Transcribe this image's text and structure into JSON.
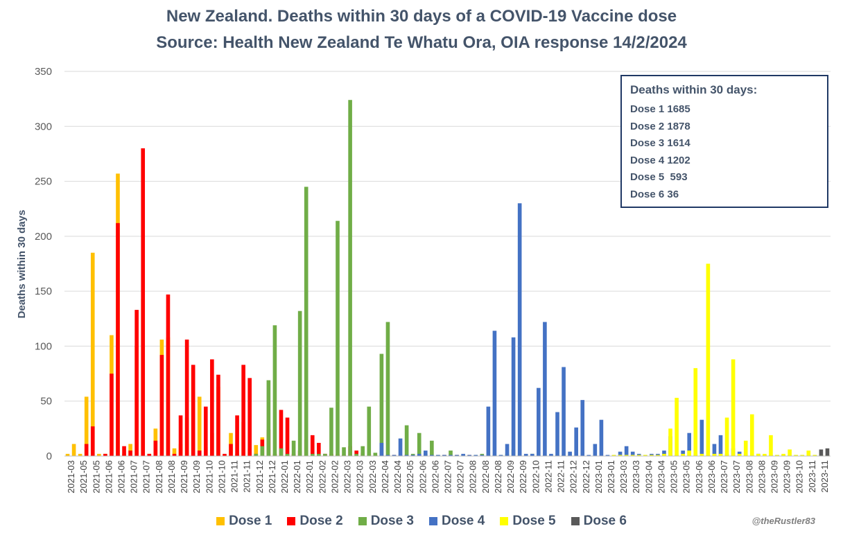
{
  "title_line1": "New Zealand. Deaths within 30 days of a COVID-19 Vaccine dose",
  "title_line2": "Source: Health New Zealand Te Whatu Ora, OIA response 14/2/2024",
  "infobox": {
    "heading": "Deaths within 30 days:",
    "rows": [
      "Dose 1 1685",
      "Dose 2 1878",
      "Dose 3 1614",
      "Dose 4 1202",
      "Dose 5  593",
      "Dose 6 36"
    ]
  },
  "credit": "@theRustler83",
  "chart_data": {
    "type": "bar",
    "ylabel": "Deaths within 30 days",
    "ylim": [
      0,
      350
    ],
    "yticks": [
      0,
      50,
      100,
      150,
      200,
      250,
      300,
      350
    ],
    "grid": true,
    "legend_position": "bottom",
    "x_tick_labels": [
      "2021-03",
      "2021-05",
      "2021-05",
      "2021-06",
      "2021-06",
      "2021-07",
      "2021-07",
      "2021-08",
      "2021-08",
      "2021-09",
      "2021-09",
      "2021-10",
      "2021-10",
      "2021-11",
      "2021-11",
      "2021-12",
      "2021-12",
      "2022-01",
      "2022-01",
      "2022-01",
      "2022-02",
      "2022-02",
      "2022-03",
      "2022-03",
      "2022-03",
      "2022-04",
      "2022-04",
      "2022-05",
      "2022-06",
      "2022-06",
      "2022-07",
      "2022-07",
      "2022-08",
      "2022-08",
      "2022-08",
      "2022-09",
      "2022-09",
      "2022-10",
      "2022-11",
      "2022-11",
      "2022-12",
      "2022-12",
      "2023-01",
      "2023-01",
      "2023-03",
      "2023-03",
      "2023-04",
      "2023-04",
      "2023-05",
      "2023-05",
      "2023-06",
      "2023-06",
      "2023-07",
      "2023-07",
      "2023-08",
      "2023-08",
      "2023-09",
      "2023-09",
      "2023-10",
      "2023-11",
      "2023-11"
    ],
    "series": [
      {
        "name": "Dose 1",
        "color": "#ffc000",
        "values": [
          2,
          11,
          2,
          54,
          185,
          2,
          2,
          110,
          257,
          2,
          11,
          100,
          143,
          2,
          25,
          106,
          108,
          7,
          11,
          35,
          80,
          54,
          8,
          21,
          63,
          1,
          21,
          2,
          31,
          7,
          10,
          17,
          2,
          2,
          1,
          1,
          1,
          1,
          1,
          2,
          1,
          1,
          1,
          2,
          1,
          1,
          0,
          1,
          0,
          1,
          0,
          1,
          0,
          0,
          0,
          0,
          0,
          0,
          0,
          0,
          0,
          0,
          0,
          0,
          0,
          0,
          0,
          0,
          0,
          0,
          0,
          0,
          0,
          0,
          0,
          0,
          0,
          0,
          0,
          0,
          0,
          0,
          0,
          0,
          0,
          0,
          0,
          0,
          0,
          0,
          0,
          0,
          0,
          0,
          0,
          0,
          0,
          0,
          0,
          0,
          0,
          0,
          0,
          0,
          0,
          0,
          0,
          0,
          0,
          0,
          0,
          0,
          0,
          0,
          0,
          0,
          0,
          0,
          0,
          0,
          0,
          0
        ]
      },
      {
        "name": "Dose 2",
        "color": "#ff0000",
        "values": [
          0,
          0,
          0,
          11,
          27,
          0,
          2,
          75,
          212,
          9,
          5,
          133,
          280,
          2,
          14,
          92,
          147,
          2,
          37,
          106,
          83,
          5,
          45,
          88,
          74,
          2,
          11,
          37,
          83,
          71,
          2,
          15,
          24,
          2,
          42,
          35,
          2,
          5,
          15,
          19,
          12,
          2,
          2,
          1,
          1,
          9,
          5,
          3,
          2,
          1,
          1,
          1,
          1,
          1,
          1,
          1,
          1,
          0,
          0,
          0,
          1,
          0,
          1,
          0,
          1,
          0,
          0,
          0,
          0,
          0,
          0,
          0,
          0,
          0,
          0,
          0,
          0,
          0,
          0,
          0,
          0,
          0,
          0,
          0,
          0,
          0,
          0,
          0,
          0,
          0,
          0,
          0,
          0,
          0,
          0,
          0,
          0,
          0,
          0,
          0,
          0,
          0,
          0,
          0,
          0,
          0,
          0,
          0,
          0,
          0,
          0,
          0,
          0,
          0,
          0,
          0,
          0,
          0,
          0,
          0,
          0,
          0
        ]
      },
      {
        "name": "Dose 3",
        "color": "#70ad47",
        "values": [
          0,
          0,
          0,
          0,
          0,
          0,
          0,
          0,
          0,
          0,
          0,
          0,
          0,
          0,
          0,
          0,
          0,
          0,
          0,
          0,
          0,
          0,
          0,
          0,
          0,
          0,
          0,
          0,
          0,
          0,
          2,
          9,
          69,
          119,
          7,
          2,
          14,
          132,
          245,
          2,
          2,
          2,
          44,
          214,
          8,
          324,
          2,
          9,
          45,
          3,
          93,
          122,
          1,
          1,
          28,
          2,
          21,
          2,
          14,
          1,
          1,
          5,
          1,
          1,
          1,
          1,
          2,
          1,
          1,
          1,
          2,
          6,
          1,
          1,
          2,
          1,
          1,
          1,
          1,
          1,
          1,
          0,
          0,
          0,
          0,
          0,
          0,
          0,
          0,
          0,
          0,
          0,
          0,
          0,
          0,
          0,
          0,
          0,
          0,
          0,
          0,
          0,
          0,
          0,
          0,
          0,
          0,
          0,
          0,
          0,
          0,
          0,
          0,
          0,
          0,
          0,
          0,
          0,
          0,
          0,
          0,
          0
        ]
      },
      {
        "name": "Dose 4",
        "color": "#4472c4",
        "values": [
          0,
          0,
          0,
          0,
          0,
          0,
          0,
          0,
          0,
          0,
          0,
          0,
          0,
          0,
          0,
          0,
          0,
          0,
          0,
          0,
          0,
          0,
          0,
          0,
          0,
          0,
          0,
          0,
          0,
          0,
          0,
          0,
          0,
          0,
          0,
          0,
          0,
          0,
          0,
          0,
          0,
          0,
          0,
          0,
          0,
          0,
          0,
          0,
          0,
          0,
          12,
          1,
          1,
          16,
          1,
          1,
          2,
          5,
          1,
          1,
          1,
          1,
          1,
          2,
          1,
          1,
          1,
          45,
          114,
          1,
          11,
          108,
          230,
          2,
          2,
          62,
          122,
          2,
          40,
          81,
          4,
          26,
          51,
          1,
          11,
          33,
          1,
          1,
          4,
          9,
          4,
          2,
          1,
          2,
          2,
          5,
          18,
          1,
          5,
          21,
          2,
          33,
          1,
          11,
          19,
          2,
          7,
          4,
          2,
          1,
          2,
          1,
          1,
          1,
          1,
          1,
          1,
          1,
          1,
          1,
          1,
          1
        ]
      },
      {
        "name": "Dose 5",
        "color": "#ffff00",
        "values": [
          0,
          0,
          0,
          0,
          0,
          0,
          0,
          0,
          0,
          0,
          0,
          0,
          0,
          0,
          0,
          0,
          0,
          0,
          0,
          0,
          0,
          0,
          0,
          0,
          0,
          0,
          0,
          0,
          0,
          0,
          0,
          0,
          0,
          0,
          0,
          0,
          0,
          0,
          0,
          0,
          0,
          0,
          0,
          0,
          0,
          0,
          0,
          0,
          0,
          0,
          0,
          0,
          0,
          0,
          0,
          0,
          0,
          0,
          0,
          0,
          0,
          0,
          0,
          0,
          0,
          0,
          0,
          0,
          0,
          0,
          0,
          0,
          0,
          0,
          0,
          0,
          0,
          0,
          0,
          0,
          0,
          0,
          0,
          0,
          0,
          0,
          0,
          1,
          1,
          1,
          1,
          1,
          1,
          1,
          1,
          2,
          25,
          53,
          2,
          5,
          80,
          2,
          175,
          2,
          2,
          35,
          88,
          2,
          14,
          38,
          2,
          2,
          19,
          1,
          2,
          6,
          1,
          1,
          5,
          1,
          1,
          1
        ]
      },
      {
        "name": "Dose 6",
        "color": "#595959",
        "values": [
          0,
          0,
          0,
          0,
          0,
          0,
          0,
          0,
          0,
          0,
          0,
          0,
          0,
          0,
          0,
          0,
          0,
          0,
          0,
          0,
          0,
          0,
          0,
          0,
          0,
          0,
          0,
          0,
          0,
          0,
          0,
          0,
          0,
          0,
          0,
          0,
          0,
          0,
          0,
          0,
          0,
          0,
          0,
          0,
          0,
          0,
          0,
          0,
          0,
          0,
          0,
          0,
          0,
          0,
          0,
          0,
          0,
          0,
          0,
          0,
          0,
          0,
          0,
          0,
          0,
          0,
          0,
          0,
          0,
          0,
          0,
          0,
          0,
          0,
          0,
          0,
          0,
          0,
          0,
          0,
          0,
          0,
          0,
          0,
          0,
          0,
          0,
          0,
          0,
          0,
          0,
          0,
          0,
          0,
          0,
          0,
          0,
          0,
          0,
          0,
          0,
          0,
          0,
          0,
          0,
          0,
          0,
          0,
          0,
          0,
          0,
          0,
          0,
          0,
          0,
          0,
          0,
          0,
          0,
          0,
          6,
          7
        ]
      }
    ]
  }
}
